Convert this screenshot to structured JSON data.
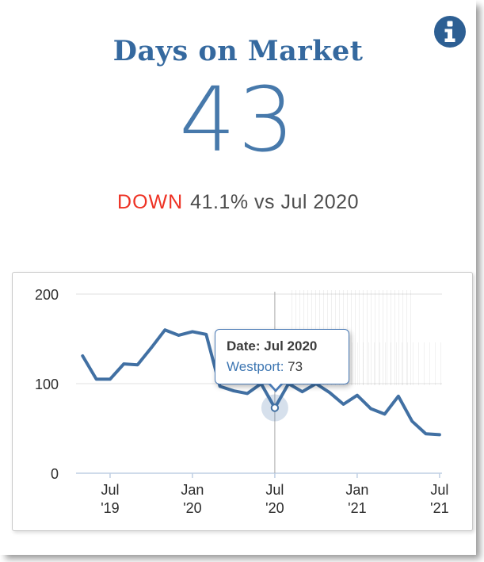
{
  "card": {
    "title": "Days on Market",
    "metric_value": "43",
    "trend": {
      "direction": "DOWN",
      "detail": "41.1% vs Jul 2020"
    },
    "colors": {
      "title_blue": "#35699f",
      "metric_blue": "#4779ab",
      "line_blue": "#4170a3",
      "trend_red": "#ee3224",
      "info_icon_bg": "#2d5f93"
    }
  },
  "tooltip": {
    "date_label": "Date:",
    "date_value": "Jul 2020",
    "series_label": "Westport:",
    "series_value": "73"
  },
  "chart_data": {
    "type": "line",
    "title": "",
    "xlabel": "",
    "ylabel": "",
    "ylim": [
      0,
      200
    ],
    "yticks": [
      0,
      100,
      200
    ],
    "grid": "horizontal",
    "legend": "none",
    "categories": [
      "May '19",
      "Jun '19",
      "Jul '19",
      "Aug '19",
      "Sep '19",
      "Oct '19",
      "Nov '19",
      "Dec '19",
      "Jan '20",
      "Feb '20",
      "Mar '20",
      "Apr '20",
      "May '20",
      "Jun '20",
      "Jul '20",
      "Aug '20",
      "Sep '20",
      "Oct '20",
      "Nov '20",
      "Dec '20",
      "Jan '21",
      "Feb '21",
      "Mar '21",
      "Apr '21",
      "May '21",
      "Jun '21",
      "Jul '21"
    ],
    "series": [
      {
        "name": "Westport",
        "color": "#4170a3",
        "values": [
          131,
          105,
          105,
          122,
          121,
          140,
          160,
          154,
          158,
          155,
          97,
          92,
          89,
          100,
          73,
          100,
          91,
          100,
          90,
          77,
          87,
          72,
          66,
          86,
          58,
          44,
          43
        ]
      }
    ],
    "xticks": [
      {
        "index": 2,
        "line1": "Jul",
        "line2": "'19"
      },
      {
        "index": 8,
        "line1": "Jan",
        "line2": "'20"
      },
      {
        "index": 14,
        "line1": "Jul",
        "line2": "'20"
      },
      {
        "index": 20,
        "line1": "Jan",
        "line2": "'21"
      },
      {
        "index": 26,
        "line1": "Jul",
        "line2": "'21"
      }
    ],
    "highlight": {
      "index": 14,
      "category": "Jul 2020",
      "value": 73
    }
  }
}
